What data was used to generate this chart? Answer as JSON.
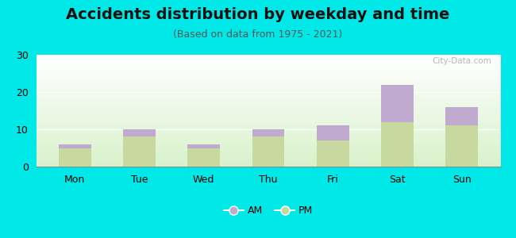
{
  "title": "Accidents distribution by weekday and time",
  "subtitle": "(Based on data from 1975 - 2021)",
  "categories": [
    "Mon",
    "Tue",
    "Wed",
    "Thu",
    "Fri",
    "Sat",
    "Sun"
  ],
  "pm_values": [
    5,
    8,
    5,
    8,
    7,
    12,
    11
  ],
  "am_values": [
    1,
    2,
    1,
    2,
    4,
    10,
    5
  ],
  "pm_color": "#c8d9a0",
  "am_color": "#c0aad0",
  "background_color": "#00e8e8",
  "ylim": [
    0,
    30
  ],
  "yticks": [
    0,
    10,
    20,
    30
  ],
  "bar_width": 0.5,
  "title_fontsize": 14,
  "subtitle_fontsize": 9,
  "tick_fontsize": 9,
  "legend_fontsize": 9,
  "watermark": "City-Data.com"
}
